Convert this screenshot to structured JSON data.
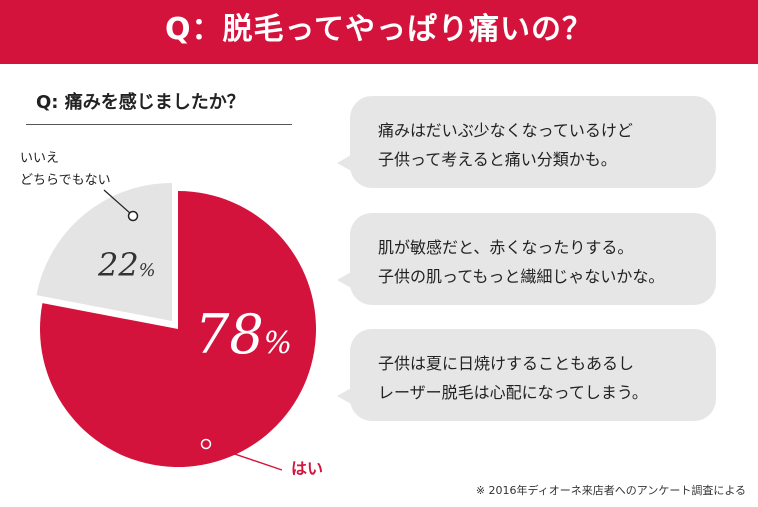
{
  "header": {
    "title": "Q：脱毛ってやっぱり痛いの？"
  },
  "question": "Q: 痛みを感じましたか？",
  "chart_data": {
    "type": "pie",
    "slices": [
      {
        "label": "はい",
        "value": 78,
        "display": "78",
        "color": "#d3133c"
      },
      {
        "label": "いいえ\nどちらでもない",
        "value": 22,
        "display": "22",
        "color": "#e4e4e4"
      }
    ],
    "unit": "%"
  },
  "labels": {
    "no_line1": "いいえ",
    "no_line2": "どちらでもない",
    "yes": "はい"
  },
  "comments": [
    {
      "line1": "痛みはだいぶ少なくなっているけど",
      "line2": "子供って考えると痛い分類かも。"
    },
    {
      "line1": "肌が敏感だと、赤くなったりする。",
      "line2": "子供の肌ってもっと繊細じゃないかな。"
    },
    {
      "line1": "子供は夏に日焼けすることもあるし",
      "line2": "レーザー脱毛は心配になってしまう。"
    }
  ],
  "footnote": "※ 2016年ディオーネ来店者へのアンケート調査による"
}
